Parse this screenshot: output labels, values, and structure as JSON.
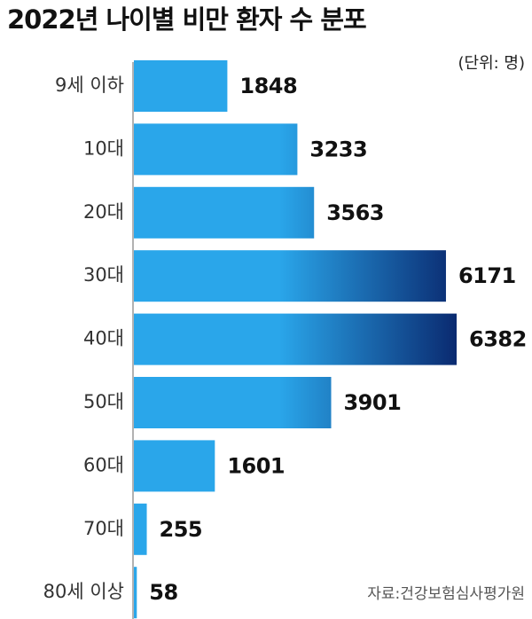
{
  "chart_data": {
    "type": "bar",
    "orientation": "horizontal",
    "title": "2022년 나이별 비만 환자 수 분포",
    "unit_label": "(단위: 명)",
    "source": "자료:건강보험심사평가원",
    "categories": [
      "9세 이하",
      "10대",
      "20대",
      "30대",
      "40대",
      "50대",
      "60대",
      "70대",
      "80세 이상"
    ],
    "values": [
      1848,
      3233,
      3563,
      6171,
      6382,
      3901,
      1601,
      255,
      58
    ],
    "colors": [
      "#2aa6ea",
      "#0a2a70"
    ]
  }
}
